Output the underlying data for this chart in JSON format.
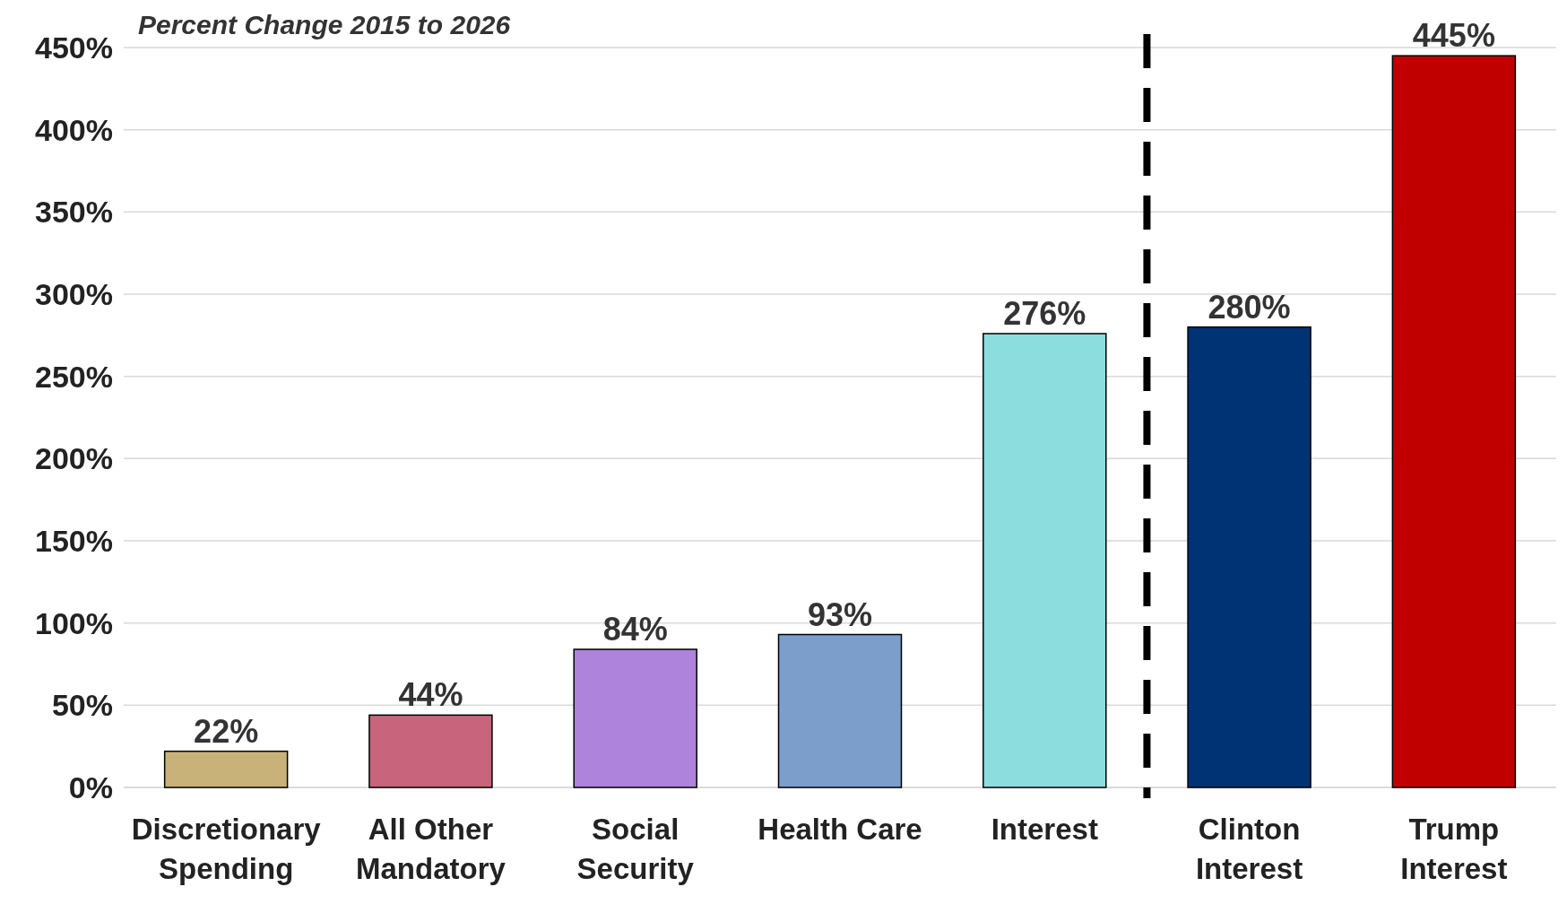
{
  "chart_data": {
    "type": "bar",
    "title": "Percent Change 2015 to 2026",
    "categories": [
      "Discretionary Spending",
      "All Other Mandatory",
      "Social Security",
      "Health Care",
      "Interest",
      "Clinton Interest",
      "Trump Interest"
    ],
    "values": [
      22,
      44,
      84,
      93,
      276,
      280,
      445
    ],
    "colors": [
      "#c9b27a",
      "#c8647c",
      "#ad83dc",
      "#7b9ecb",
      "#8cdede",
      "#003373",
      "#c00000"
    ],
    "ylim": [
      0,
      450
    ],
    "yticks": [
      {
        "value": 0,
        "label": "0%"
      },
      {
        "value": 50,
        "label": "50%"
      },
      {
        "value": 100,
        "label": "100%"
      },
      {
        "value": 150,
        "label": "150%"
      },
      {
        "value": 200,
        "label": "200%"
      },
      {
        "value": 250,
        "label": "250%"
      },
      {
        "value": 300,
        "label": "300%"
      },
      {
        "value": 350,
        "label": "350%"
      },
      {
        "value": 400,
        "label": "400%"
      },
      {
        "value": 450,
        "label": "450%"
      }
    ],
    "value_labels": [
      "22%",
      "44%",
      "84%",
      "93%",
      "276%",
      "280%",
      "445%"
    ],
    "grid": "y"
  }
}
